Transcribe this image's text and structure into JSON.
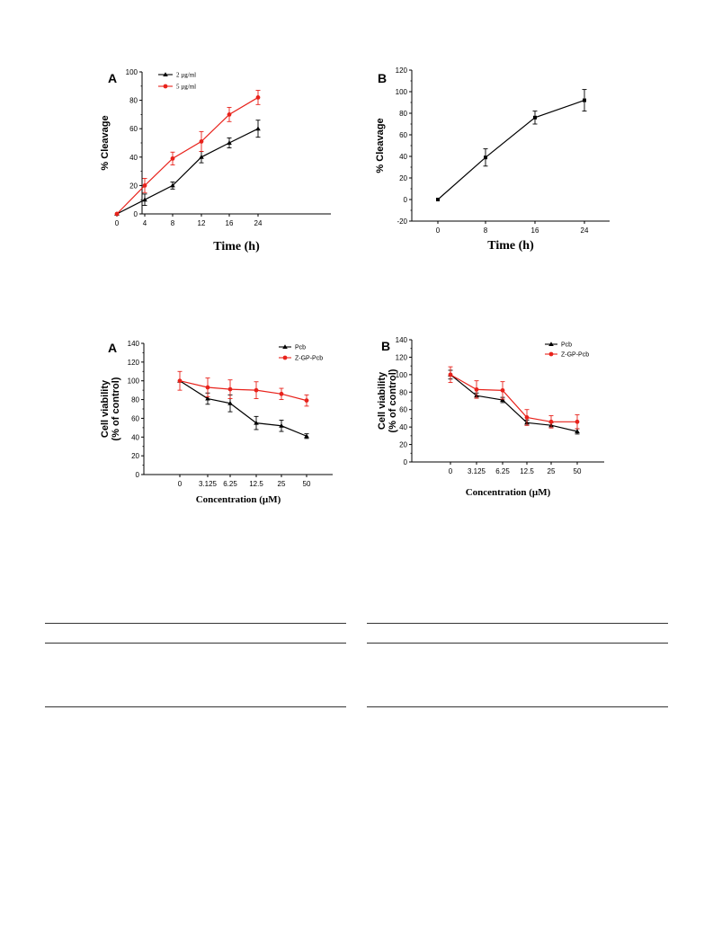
{
  "chart_data": [
    {
      "id": "c1",
      "panel": "A",
      "type": "line",
      "x": [
        "0",
        "4",
        "8",
        "12",
        "16",
        "24"
      ],
      "xlabel": "Time (h)",
      "ylabel": "% Cleavage",
      "ylim": [
        0,
        100
      ],
      "yticks": [
        "0",
        "20",
        "40",
        "60",
        "80",
        "100"
      ],
      "series": [
        {
          "name": "2 µg/ml",
          "color": "#000000",
          "marker": "triangle",
          "values": [
            0,
            10,
            20,
            40,
            50,
            60
          ],
          "errors": [
            0,
            4,
            2.5,
            4,
            3.5,
            6
          ]
        },
        {
          "name": "5 µg/ml",
          "color": "#e8221b",
          "marker": "circle",
          "values": [
            0,
            20,
            39,
            51,
            70,
            82
          ],
          "errors": [
            0,
            5,
            4.5,
            7,
            5,
            5
          ]
        }
      ],
      "legend": "top-left",
      "grid": false
    },
    {
      "id": "c2",
      "panel": "B",
      "type": "line",
      "x": [
        "0",
        "8",
        "16",
        "24"
      ],
      "xlabel": "Time (h)",
      "ylabel": "% Cleavage",
      "ylim": [
        -20,
        120
      ],
      "yticks": [
        "-20",
        "0",
        "20",
        "40",
        "60",
        "80",
        "100",
        "120"
      ],
      "series": [
        {
          "color": "#000000",
          "marker": "square",
          "values": [
            0,
            39,
            76,
            92
          ],
          "errors": [
            0,
            8,
            6,
            10
          ]
        }
      ],
      "grid": false
    },
    {
      "id": "c3",
      "panel": "A",
      "type": "line",
      "x": [
        "0",
        "3.125",
        "6.25",
        "12.5",
        "25",
        "50"
      ],
      "xlabel": "Concentration (µM)",
      "ylabel_line1": "Cell viability",
      "ylabel_line2": "(% of control)",
      "ylim": [
        0,
        140
      ],
      "yticks": [
        "0",
        "20",
        "40",
        "60",
        "80",
        "100",
        "120",
        "140"
      ],
      "series": [
        {
          "name": "Pcb",
          "color": "#000000",
          "marker": "triangle",
          "values": [
            100,
            81,
            76,
            55,
            52,
            41
          ],
          "errors": [
            0,
            6,
            9,
            7,
            6,
            2.5
          ]
        },
        {
          "name": "Z-GP-Pcb",
          "color": "#e8221b",
          "marker": "circle",
          "values": [
            100,
            93,
            91,
            90,
            86,
            79
          ],
          "errors": [
            10,
            10,
            10,
            9,
            6,
            6
          ]
        }
      ],
      "legend": "top-right",
      "grid": false
    },
    {
      "id": "c4",
      "panel": "B",
      "type": "line",
      "x": [
        "0",
        "3.125",
        "6.25",
        "12.5",
        "25",
        "50"
      ],
      "xlabel": "Concentration (µM)",
      "ylabel_line1": "Cell viability",
      "ylabel_line2": "(% of control)",
      "ylim": [
        0,
        140
      ],
      "yticks": [
        "0",
        "20",
        "40",
        "60",
        "80",
        "100",
        "120",
        "140"
      ],
      "series": [
        {
          "name": "Pcb",
          "color": "#000000",
          "marker": "triangle",
          "values": [
            100,
            76,
            71,
            45,
            42,
            35
          ],
          "errors": [
            5,
            3,
            3,
            3,
            3,
            3
          ]
        },
        {
          "name": "Z-GP-Pcb",
          "color": "#e8221b",
          "marker": "circle",
          "values": [
            100,
            83,
            82,
            51,
            46,
            46
          ],
          "errors": [
            9,
            10,
            10,
            9,
            7,
            8
          ]
        }
      ],
      "legend": "top-left",
      "grid": false
    }
  ]
}
